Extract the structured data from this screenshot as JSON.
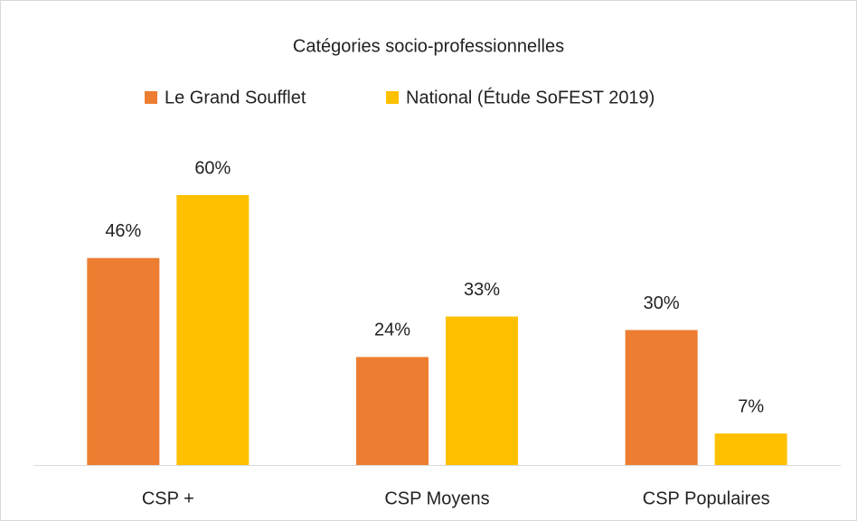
{
  "chart_data": {
    "type": "bar",
    "title": "Catégories socio-professionnelles",
    "categories": [
      "CSP +",
      "CSP Moyens",
      "CSP Populaires"
    ],
    "series": [
      {
        "name": "Le Grand Soufflet",
        "color": "#ED7D31",
        "values": [
          46,
          24,
          30
        ],
        "value_labels": [
          "46%",
          "24%",
          "30%"
        ]
      },
      {
        "name": "National (Étude SoFEST 2019)",
        "color": "#FFC000",
        "values": [
          60,
          33,
          7
        ],
        "value_labels": [
          "60%",
          "33%",
          "7%"
        ]
      }
    ]
  }
}
